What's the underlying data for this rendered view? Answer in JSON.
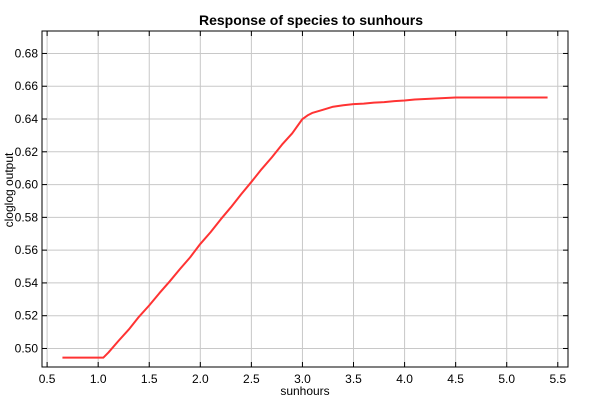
{
  "chart_data": {
    "type": "line",
    "title": "Response of species to sunhours",
    "xlabel": "sunhours",
    "ylabel": "cloglog output",
    "xlim": [
      0.45,
      5.6
    ],
    "ylim": [
      0.4887,
      0.6937
    ],
    "grid": true,
    "xticks": [
      0.5,
      1.0,
      1.5,
      2.0,
      2.5,
      3.0,
      3.5,
      4.0,
      4.5,
      5.0,
      5.5
    ],
    "xtick_labels": [
      "0.5",
      "1.0",
      "1.5",
      "2.0",
      "2.5",
      "3.0",
      "3.5",
      "4.0",
      "4.5",
      "5.0",
      "5.5"
    ],
    "yticks": [
      0.5,
      0.52,
      0.54,
      0.56,
      0.58,
      0.6,
      0.62,
      0.64,
      0.66,
      0.68
    ],
    "ytick_labels": [
      "0.50",
      "0.52",
      "0.54",
      "0.56",
      "0.58",
      "0.60",
      "0.62",
      "0.64",
      "0.66",
      "0.68"
    ],
    "series": [
      {
        "color": "#ff3333",
        "x": [
          0.65,
          1.05,
          1.1,
          1.2,
          1.3,
          1.4,
          1.5,
          1.6,
          1.7,
          1.8,
          1.9,
          2.0,
          2.1,
          2.2,
          2.3,
          2.4,
          2.5,
          2.6,
          2.7,
          2.8,
          2.9,
          3.0,
          3.05,
          3.1,
          3.2,
          3.3,
          3.4,
          3.5,
          3.6,
          3.7,
          3.8,
          3.9,
          4.0,
          4.1,
          4.2,
          4.3,
          4.4,
          4.5,
          5.0,
          5.4
        ],
        "y": [
          0.4944,
          0.4944,
          0.4975,
          0.5047,
          0.5116,
          0.5194,
          0.5263,
          0.5338,
          0.5409,
          0.5484,
          0.5556,
          0.5638,
          0.5709,
          0.5788,
          0.5862,
          0.5941,
          0.6016,
          0.6094,
          0.6166,
          0.6244,
          0.6313,
          0.64,
          0.6422,
          0.6438,
          0.6456,
          0.6475,
          0.6484,
          0.6491,
          0.6494,
          0.65,
          0.6503,
          0.6509,
          0.6513,
          0.6519,
          0.6522,
          0.6525,
          0.6528,
          0.6531,
          0.6531,
          0.6531
        ]
      }
    ]
  }
}
